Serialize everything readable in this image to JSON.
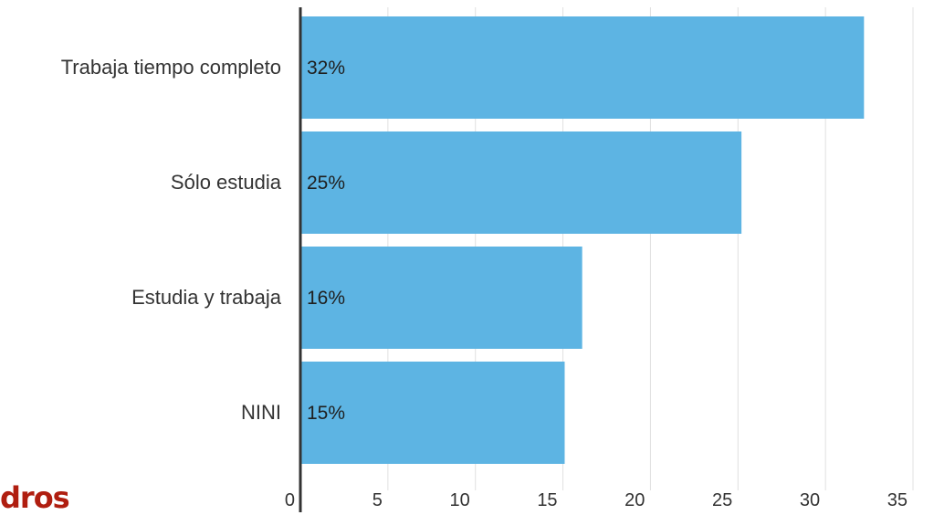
{
  "chart_data": {
    "type": "bar",
    "orientation": "horizontal",
    "categories": [
      "Trabaja tiempo completo",
      "Sólo estudia",
      "Estudia y trabaja",
      "NINI"
    ],
    "values": [
      32.2,
      25.2,
      16.1,
      15.1
    ],
    "data_labels": [
      "32%",
      "25%",
      "16%",
      "15%"
    ],
    "x_ticks": [
      "0",
      "5",
      "10",
      "15",
      "20",
      "25",
      "30",
      "35"
    ],
    "xlim": [
      0,
      35
    ],
    "title": "",
    "xlabel": "",
    "ylabel": "",
    "grid": "vertical",
    "bar_color": "#5db4e3",
    "axis_color": "#333333",
    "grid_color": "#e0e0e0"
  },
  "overlay": {
    "partial_text": "dros",
    "color": "#b01e10"
  }
}
